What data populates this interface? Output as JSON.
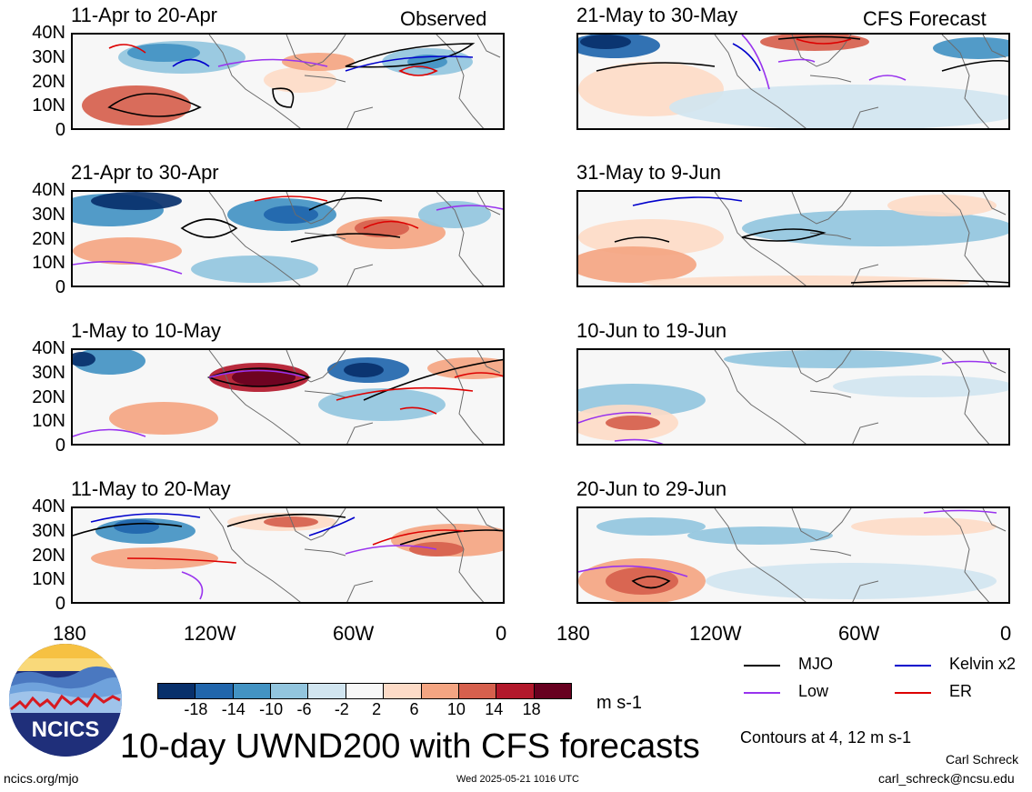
{
  "headers": {
    "observed": "Observed",
    "forecast": "CFS Forecast"
  },
  "panels": [
    {
      "title": "11-Apr to 20-Apr"
    },
    {
      "title": "21-May to 30-May"
    },
    {
      "title": "21-Apr to 30-Apr"
    },
    {
      "title": "31-May to 9-Jun"
    },
    {
      "title": "1-May to 10-May"
    },
    {
      "title": "10-Jun to 19-Jun"
    },
    {
      "title": "11-May to 20-May"
    },
    {
      "title": "20-Jun to 29-Jun"
    }
  ],
  "y_ticks": [
    "40N",
    "30N",
    "20N",
    "10N",
    "0"
  ],
  "x_ticks": [
    "180",
    "120W",
    "60W",
    "0"
  ],
  "colorbar": {
    "labels": [
      "-18",
      "-14",
      "-10",
      "-6",
      "-2",
      "2",
      "6",
      "10",
      "14",
      "18"
    ],
    "colors": [
      "#08306b",
      "#2166ac",
      "#4393c3",
      "#92c5de",
      "#d1e5f0",
      "#f7f7f7",
      "#fddbc7",
      "#f4a582",
      "#d6604d",
      "#b2182b",
      "#67001f"
    ],
    "unit": "m s-1"
  },
  "legend": [
    {
      "label": "MJO",
      "color": "#000000"
    },
    {
      "label": "Kelvin x2",
      "color": "#0000cc"
    },
    {
      "label": "Low",
      "color": "#9933ee"
    },
    {
      "label": "ER",
      "color": "#dd0000"
    }
  ],
  "contours_note": "Contours at 4, 12 m s-1",
  "main_title": "10-day UWND200 with CFS forecasts",
  "logo_text": "NCICS",
  "footer": {
    "url": "ncics.org/mjo",
    "timestamp": "Wed 2025-05-21 1016 UTC",
    "author": "Carl Schreck",
    "email": "carl_schreck@ncsu.edu"
  }
}
